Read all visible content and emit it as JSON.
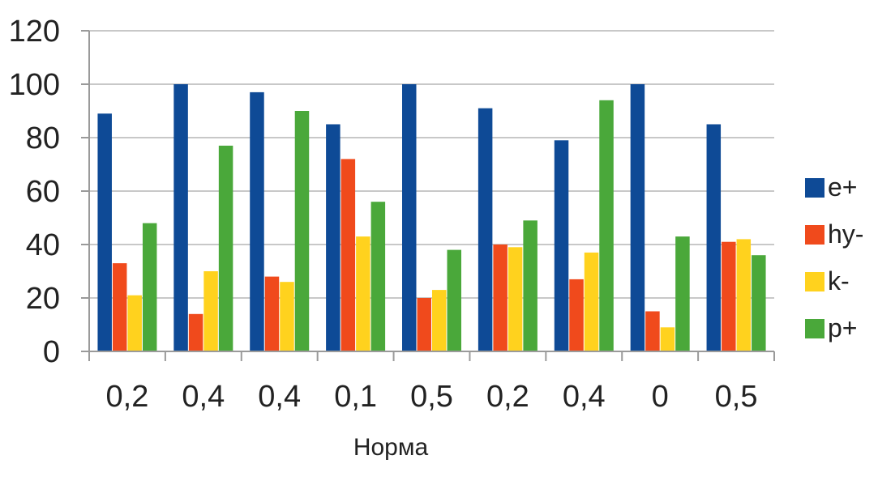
{
  "chart_data": {
    "type": "bar",
    "title": "",
    "xlabel": "Норма",
    "ylabel": "",
    "ylim": [
      0,
      120
    ],
    "yticks": [
      0,
      20,
      40,
      60,
      80,
      100,
      120
    ],
    "grid": true,
    "legend_position": "right",
    "categories": [
      "0,2",
      "0,4",
      "0,4",
      "0,1",
      "0,5",
      "0,2",
      "0,4",
      "0",
      "0,5"
    ],
    "series": [
      {
        "name": "e+",
        "color": "#0e4a96",
        "values": [
          89,
          100,
          97,
          85,
          100,
          91,
          79,
          100,
          85
        ]
      },
      {
        "name": "hy-",
        "color": "#f04a1c",
        "values": [
          33,
          14,
          28,
          72,
          20,
          40,
          27,
          15,
          41
        ]
      },
      {
        "name": "k-",
        "color": "#ffd21e",
        "values": [
          21,
          30,
          26,
          43,
          23,
          39,
          37,
          9,
          42
        ]
      },
      {
        "name": "p+",
        "color": "#4aa83a",
        "values": [
          48,
          77,
          90,
          56,
          38,
          49,
          94,
          43,
          36
        ]
      }
    ]
  },
  "style": {
    "grid_color": "#c8c8c8",
    "axis_color": "#9a9a9a"
  }
}
